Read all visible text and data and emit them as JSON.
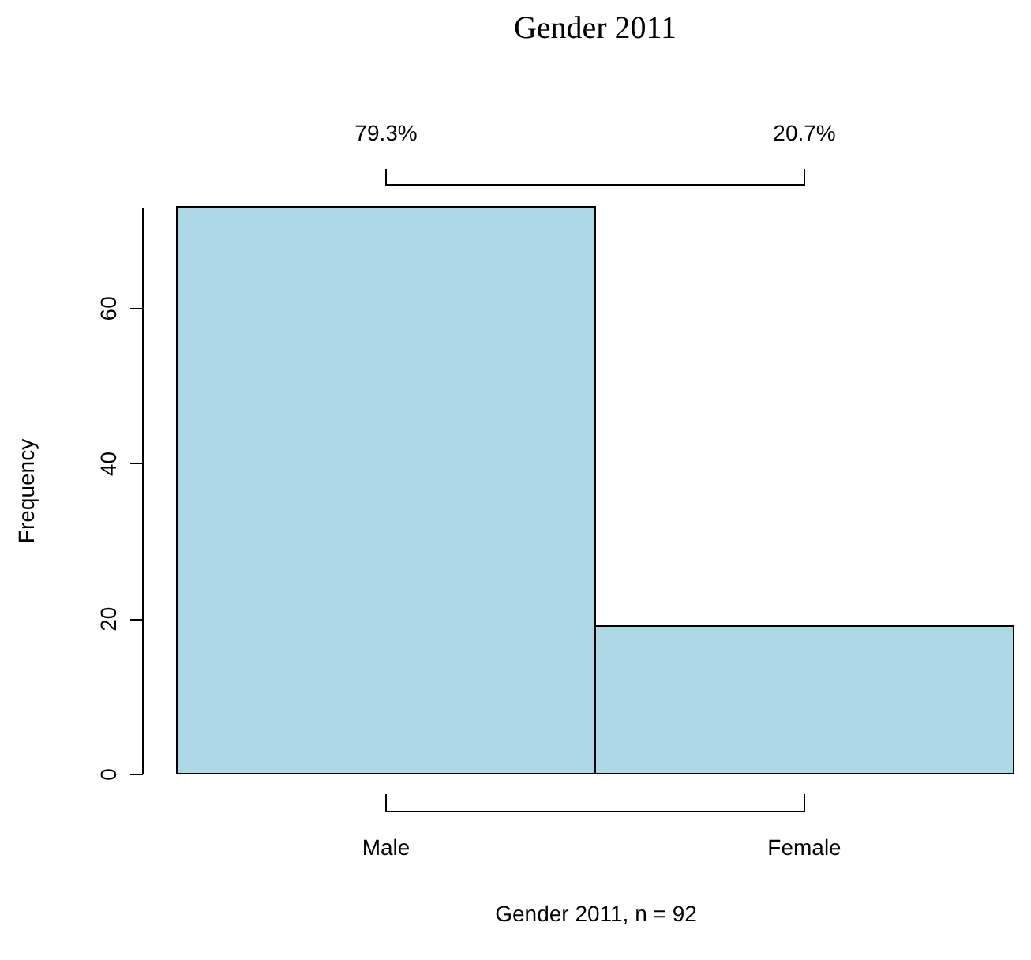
{
  "chart_data": {
    "type": "bar",
    "title": "Gender 2011",
    "xlabel": "Gender 2011, n = 92",
    "ylabel": "Frequency",
    "categories": [
      "Male",
      "Female"
    ],
    "values": [
      73,
      19
    ],
    "color": "#add8e6",
    "ylim": [
      0,
      73
    ],
    "yticks": [
      0,
      20,
      40,
      60
    ],
    "grid": false,
    "annotations": [
      "79.3%",
      "20.7%"
    ]
  }
}
